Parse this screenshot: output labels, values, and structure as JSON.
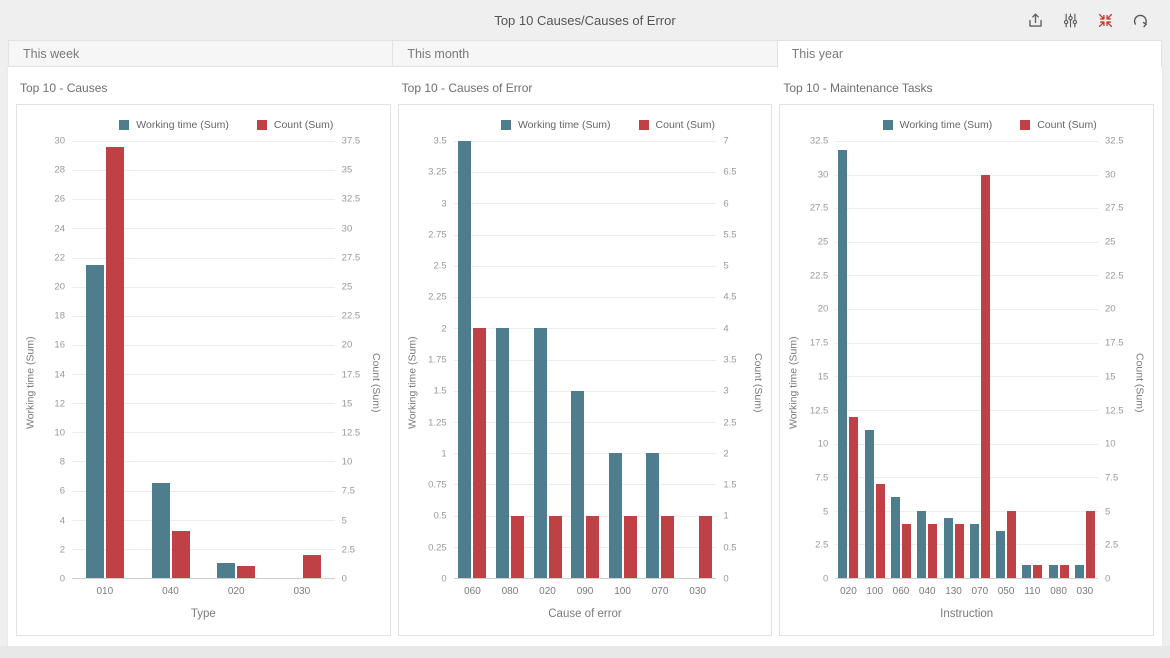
{
  "header": {
    "title": "Top 10 Causes/Causes of Error",
    "icons": [
      "export-icon",
      "filter-settings-icon",
      "collapse-icon",
      "redo-icon"
    ]
  },
  "tabs": [
    {
      "label": "This week",
      "active": false
    },
    {
      "label": "This month",
      "active": false
    },
    {
      "label": "This year",
      "active": true
    }
  ],
  "colors": {
    "working_time": "#4e7e8d",
    "count": "#bf4045",
    "collapse_icon": "#c0392b",
    "icon_gray": "#5f5f5f"
  },
  "chart_data": [
    {
      "type": "bar",
      "title": "Top 10 - Causes",
      "legend": [
        "Working time (Sum)",
        "Count (Sum)"
      ],
      "x_label": "Type",
      "y_left": {
        "label": "Working time (Sum)",
        "min": 0,
        "max": 30,
        "step": 2
      },
      "y_right": {
        "label": "Count (Sum)",
        "min": 0,
        "max": 37.5,
        "step": 2.5
      },
      "categories": [
        "010",
        "040",
        "020",
        "030"
      ],
      "series": [
        {
          "name": "Working time (Sum)",
          "axis": "left",
          "values": [
            21.5,
            6.5,
            1,
            0
          ]
        },
        {
          "name": "Count (Sum)",
          "axis": "right",
          "values": [
            37,
            4,
            1,
            2
          ]
        }
      ],
      "grid": true,
      "legend_position": "top"
    },
    {
      "type": "bar",
      "title": "Top 10 - Causes of Error",
      "legend": [
        "Working time (Sum)",
        "Count (Sum)"
      ],
      "x_label": "Cause of error",
      "y_left": {
        "label": "Working time (Sum)",
        "min": 0,
        "max": 3.5,
        "step": 0.25
      },
      "y_right": {
        "label": "Count (Sum)",
        "min": 0,
        "max": 7,
        "step": 0.5
      },
      "categories": [
        "060",
        "080",
        "020",
        "090",
        "100",
        "070",
        "030"
      ],
      "series": [
        {
          "name": "Working time (Sum)",
          "axis": "left",
          "values": [
            3.5,
            2,
            2,
            1.5,
            1,
            1,
            0
          ]
        },
        {
          "name": "Count (Sum)",
          "axis": "right",
          "values": [
            4,
            1,
            1,
            1,
            1,
            1,
            1
          ]
        }
      ],
      "grid": true,
      "legend_position": "top"
    },
    {
      "type": "bar",
      "title": "Top 10 - Maintenance Tasks",
      "legend": [
        "Working time (Sum)",
        "Count (Sum)"
      ],
      "x_label": "Instruction",
      "y_left": {
        "label": "Working time (Sum)",
        "min": 0,
        "max": 32.5,
        "step": 2.5
      },
      "y_right": {
        "label": "Count (Sum)",
        "min": 0,
        "max": 32.5,
        "step": 2.5
      },
      "categories": [
        "020",
        "100",
        "060",
        "040",
        "130",
        "070",
        "050",
        "110",
        "080",
        "030"
      ],
      "series": [
        {
          "name": "Working time (Sum)",
          "axis": "left",
          "values": [
            31.8,
            11,
            6,
            5,
            4.5,
            4,
            3.5,
            1,
            1,
            1
          ]
        },
        {
          "name": "Count (Sum)",
          "axis": "right",
          "values": [
            12,
            7,
            4,
            4,
            4,
            30,
            5,
            1,
            1,
            5
          ]
        }
      ],
      "grid": true,
      "legend_position": "top"
    }
  ]
}
